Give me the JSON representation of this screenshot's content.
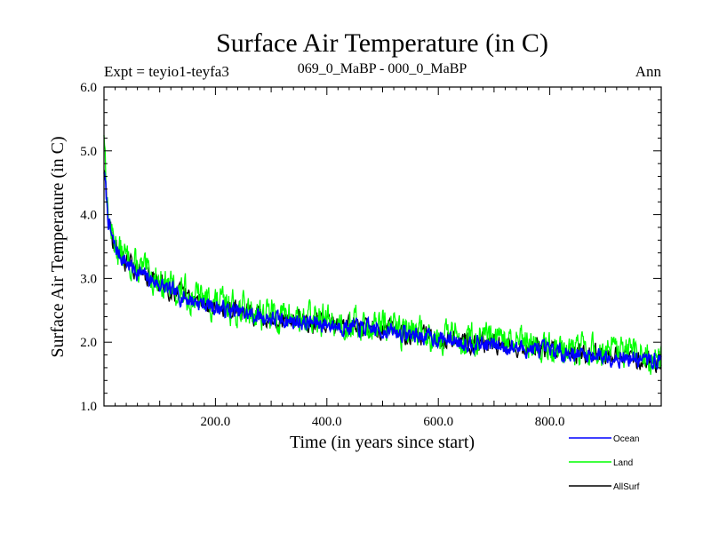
{
  "chart_data": {
    "type": "line",
    "title": "Surface Air Temperature (in C)",
    "subtitle_left": "Expt = teyio1-teyfa3",
    "subtitle_center": "069_0_MaBP - 000_0_MaBP",
    "subtitle_right": "Ann",
    "xlabel": "Time (in years since start)",
    "ylabel": "Surface Air Temperature (in C)",
    "xlim": [
      0,
      1000
    ],
    "ylim": [
      1.0,
      6.0
    ],
    "x_ticks": [
      200,
      400,
      600,
      800
    ],
    "x_tick_labels": [
      "200.0",
      "400.0",
      "600.0",
      "800.0"
    ],
    "y_ticks": [
      1,
      2,
      3,
      4,
      5,
      6
    ],
    "y_tick_labels": [
      "1.0",
      "2.0",
      "3.0",
      "4.0",
      "5.0",
      "6.0"
    ],
    "legend_position": "bottom-right",
    "trend": {
      "years": [
        0,
        3,
        8,
        15,
        25,
        40,
        60,
        80,
        100,
        130,
        160,
        200,
        250,
        300,
        350,
        400,
        450,
        500,
        550,
        600,
        650,
        700,
        750,
        800,
        850,
        900,
        950,
        1000
      ],
      "values": [
        4.7,
        4.4,
        3.9,
        3.6,
        3.4,
        3.25,
        3.1,
        3.0,
        2.9,
        2.75,
        2.65,
        2.55,
        2.45,
        2.37,
        2.32,
        2.28,
        2.23,
        2.18,
        2.12,
        2.06,
        2.0,
        1.95,
        1.9,
        1.86,
        1.82,
        1.78,
        1.74,
        1.7
      ]
    },
    "series": [
      {
        "name": "Ocean",
        "color": "#0000ff",
        "offset": 0.0,
        "noise": 0.11,
        "seed": 7
      },
      {
        "name": "Land",
        "color": "#00ff00",
        "offset": 0.06,
        "noise": 0.22,
        "seed": 13
      },
      {
        "name": "AllSurf",
        "color": "#000000",
        "offset": 0.02,
        "noise": 0.13,
        "seed": 29
      }
    ]
  }
}
